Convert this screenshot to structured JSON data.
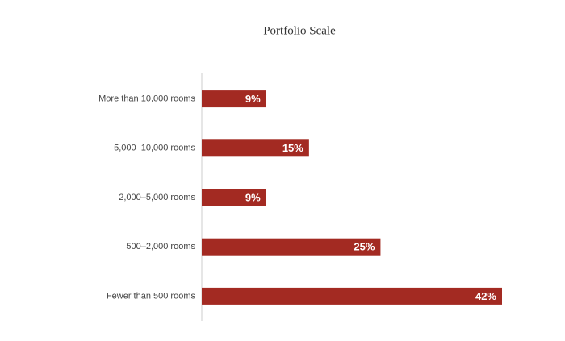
{
  "chart_data": {
    "type": "bar",
    "orientation": "horizontal",
    "title": "Portfolio Scale",
    "categories": [
      "More than 10,000 rooms",
      "5,000–10,000 rooms",
      "2,000–5,000 rooms",
      "500–2,000 rooms",
      "Fewer than 500 rooms"
    ],
    "values": [
      9,
      15,
      9,
      25,
      42
    ],
    "value_labels": [
      "9%",
      "15%",
      "9%",
      "25%",
      "42%"
    ],
    "color": "#a32a22",
    "xlim": [
      0,
      42
    ]
  }
}
